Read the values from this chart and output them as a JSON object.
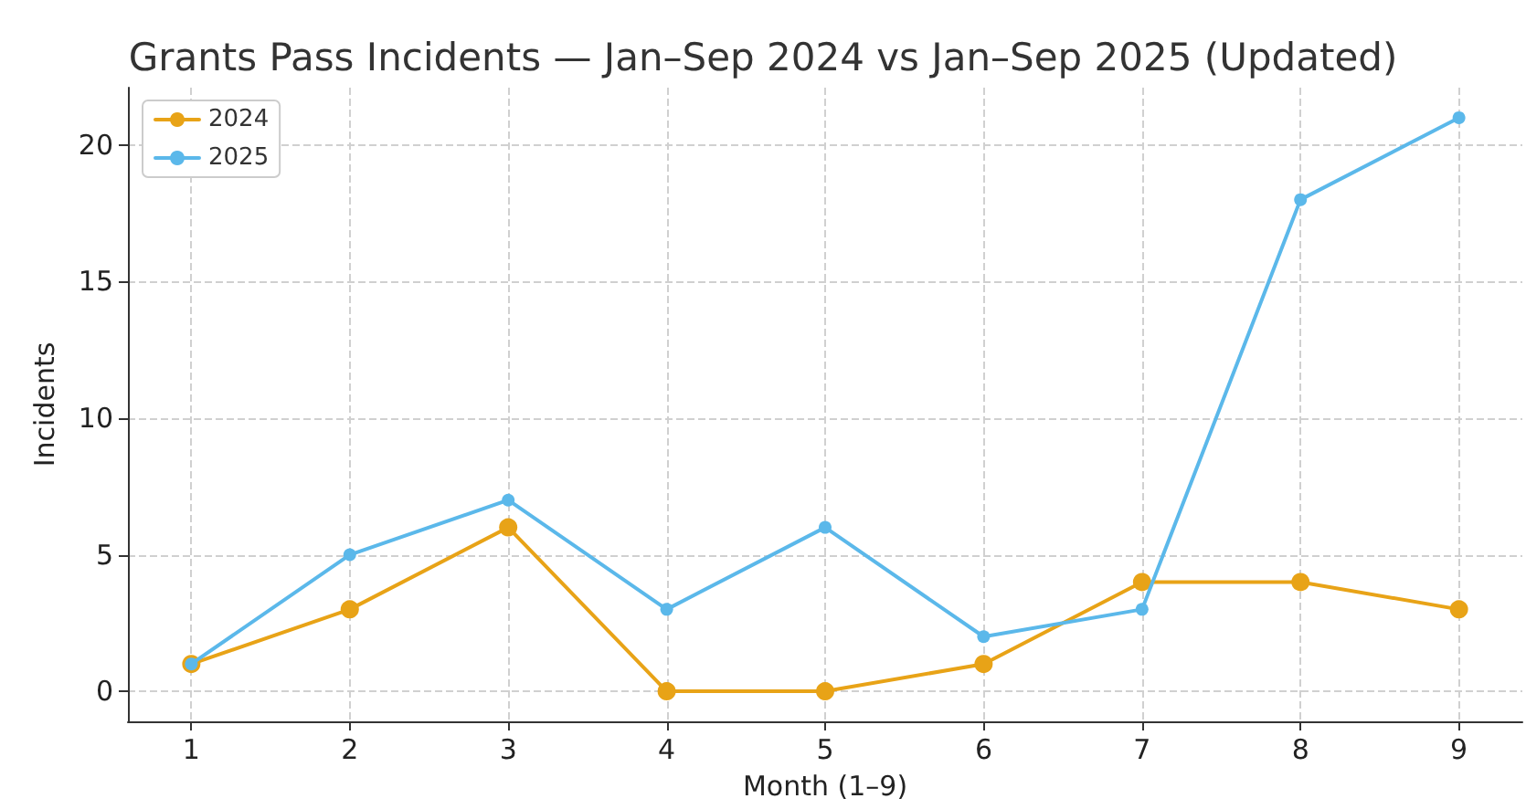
{
  "chart_data": {
    "type": "line",
    "title": "Grants Pass Incidents — Jan–Sep 2024 vs Jan–Sep 2025 (Updated)",
    "xlabel": "Month (1–9)",
    "ylabel": "Incidents",
    "x": [
      1,
      2,
      3,
      4,
      5,
      6,
      7,
      8,
      9
    ],
    "series": [
      {
        "name": "2024",
        "color": "#e8a317",
        "values": [
          1,
          3,
          6,
          0,
          0,
          1,
          4,
          4,
          3
        ]
      },
      {
        "name": "2025",
        "color": "#5bb8ea",
        "values": [
          1,
          5,
          7,
          3,
          6,
          2,
          3,
          18,
          21
        ]
      }
    ],
    "xlim": [
      0.6,
      9.4
    ],
    "xticks": [
      1,
      2,
      3,
      4,
      5,
      6,
      7,
      8,
      9
    ],
    "ylim": [
      -1.1,
      22.1
    ],
    "yticks": [
      0,
      5,
      10,
      15,
      20
    ],
    "grid": true,
    "legend": "top left",
    "marker": "circle",
    "line_style": "solid"
  }
}
